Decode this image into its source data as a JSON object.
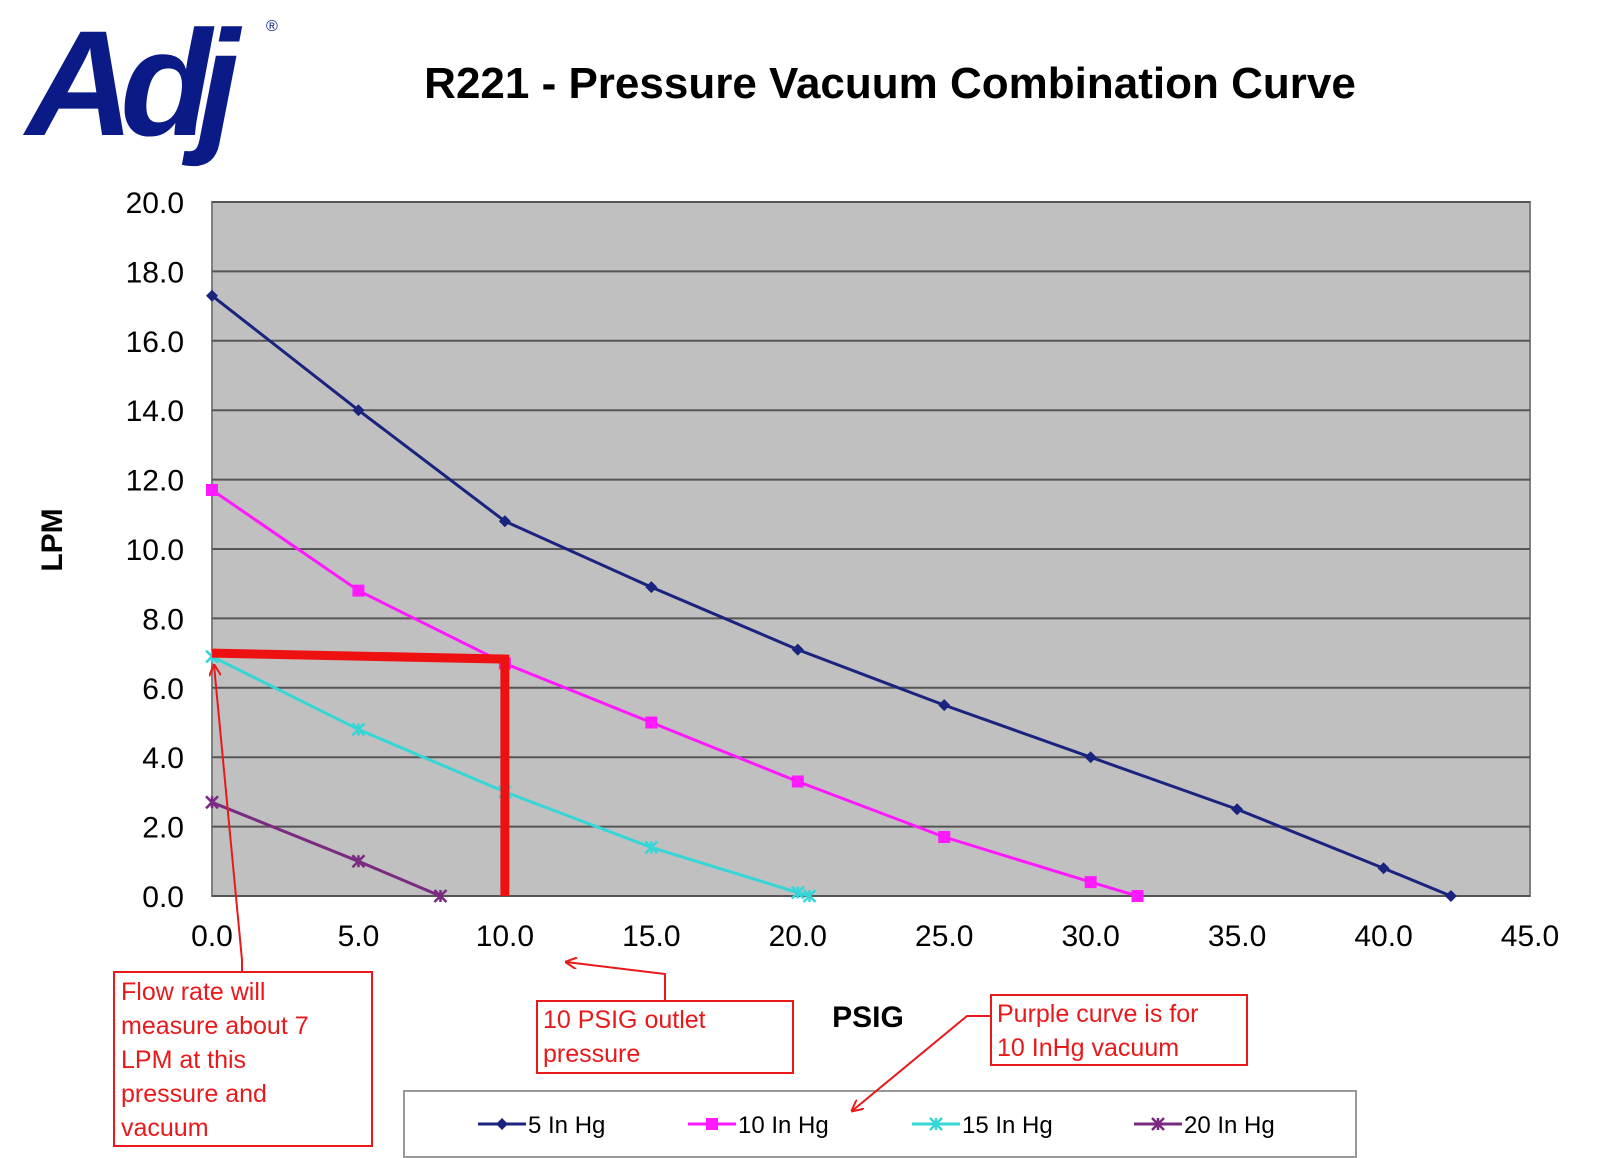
{
  "logo": {
    "text": "Adj",
    "registered": "®",
    "color": "#0a1a87"
  },
  "chart_data": {
    "type": "line",
    "title": "R221 - Pressure Vacuum Combination Curve",
    "xlabel": "PSIG",
    "ylabel": "LPM",
    "xlim": [
      0,
      45
    ],
    "ylim": [
      0,
      20
    ],
    "xticks": [
      "0.0",
      "5.0",
      "10.0",
      "15.0",
      "20.0",
      "25.0",
      "30.0",
      "35.0",
      "40.0",
      "45.0"
    ],
    "yticks": [
      "0.0",
      "2.0",
      "4.0",
      "6.0",
      "8.0",
      "10.0",
      "12.0",
      "14.0",
      "16.0",
      "18.0",
      "20.0"
    ],
    "grid": true,
    "plot_background": "#c0c0c0",
    "legend_position": "bottom",
    "series": [
      {
        "name": "5 In Hg",
        "color": "#1a237e",
        "marker": "diamond",
        "x": [
          0,
          5,
          10,
          15,
          20,
          25,
          30,
          35,
          40,
          42.3
        ],
        "y": [
          17.3,
          14.0,
          10.8,
          8.9,
          7.1,
          5.5,
          4.0,
          2.5,
          0.8,
          0.0
        ]
      },
      {
        "name": "10 In Hg",
        "color": "#ff19ff",
        "marker": "square",
        "x": [
          0,
          5,
          10,
          15,
          20,
          25,
          30,
          31.6
        ],
        "y": [
          11.7,
          8.8,
          6.7,
          5.0,
          3.3,
          1.7,
          0.4,
          0.0
        ]
      },
      {
        "name": "15 In Hg",
        "color": "#36d6d6",
        "marker": "x",
        "x": [
          0,
          5,
          10,
          15,
          20,
          20.4
        ],
        "y": [
          6.9,
          4.8,
          3.0,
          1.4,
          0.1,
          0.0
        ]
      },
      {
        "name": "20 In Hg",
        "color": "#7b2a82",
        "marker": "x",
        "x": [
          0,
          5,
          7.8
        ],
        "y": [
          2.7,
          1.0,
          0.0
        ]
      }
    ],
    "highlight": {
      "color": "#ee1111",
      "x": 10,
      "y": 7
    },
    "annotations": [
      {
        "id": "flow",
        "lines": [
          "Flow rate will",
          "measure about 7",
          "LPM at this",
          "pressure and",
          "vacuum"
        ]
      },
      {
        "id": "outlet",
        "lines": [
          "10 PSIG outlet",
          "pressure"
        ]
      },
      {
        "id": "purple",
        "lines": [
          "Purple curve is for",
          "10 InHg vacuum"
        ]
      }
    ]
  }
}
